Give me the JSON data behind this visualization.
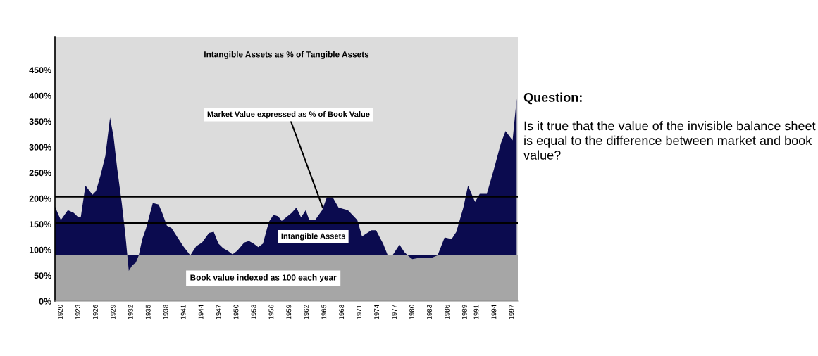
{
  "chart_data": {
    "type": "area",
    "title": "Intangible Assets as % of Tangible Assets",
    "x": [
      1919.0,
      1920.0,
      1921.2,
      1922.2,
      1923.0,
      1923.4,
      1924.2,
      1924.8,
      1925.4,
      1926.0,
      1926.8,
      1927.6,
      1928.4,
      1929.0,
      1929.6,
      1930.4,
      1931.0,
      1931.6,
      1932.2,
      1932.8,
      1933.3,
      1933.9,
      1934.5,
      1935.7,
      1936.7,
      1937.3,
      1938.1,
      1938.9,
      1940.1,
      1940.9,
      1942.1,
      1943.1,
      1944.1,
      1945.3,
      1946.1,
      1946.9,
      1947.7,
      1948.5,
      1949.3,
      1950.1,
      1951.3,
      1952.1,
      1952.9,
      1953.7,
      1954.5,
      1955.5,
      1956.3,
      1957.1,
      1957.7,
      1959.4,
      1960.2,
      1961.0,
      1961.8,
      1962.4,
      1963.4,
      1964.6,
      1965.4,
      1966.4,
      1967.4,
      1969.0,
      1970.6,
      1971.4,
      1973.0,
      1973.8,
      1975.0,
      1975.8,
      1976.6,
      1977.8,
      1978.6,
      1979.4,
      1980.0,
      1981.0,
      1983.4,
      1984.3,
      1985.5,
      1986.7,
      1987.5,
      1988.7,
      1989.5,
      1990.1,
      1990.7,
      1991.5,
      1992.7,
      1993.9,
      1995.1,
      1995.9,
      1997.1,
      1997.8
    ],
    "series": [
      {
        "color": "#0b0b4f",
        "values": [
          184,
          158,
          177,
          172,
          163,
          163,
          225,
          216,
          207,
          214,
          246,
          283,
          357,
          320,
          260,
          191,
          131,
          59,
          70,
          75,
          89,
          121,
          140,
          191,
          188,
          172,
          147,
          142,
          121,
          107,
          89,
          107,
          114,
          133,
          135,
          112,
          103,
          98,
          91,
          98,
          114,
          117,
          112,
          105,
          112,
          154,
          168,
          165,
          156,
          172,
          182,
          163,
          177,
          158,
          158,
          177,
          202,
          202,
          182,
          177,
          158,
          126,
          138,
          138,
          112,
          89,
          89,
          110,
          96,
          87,
          82,
          84,
          85,
          89,
          124,
          121,
          135,
          182,
          225,
          209,
          193,
          209,
          209,
          256,
          307,
          331,
          313,
          394
        ]
      }
    ],
    "xlim": [
      1919,
      1998
    ],
    "xticks": [
      1920,
      1923,
      1926,
      1929,
      1932,
      1935,
      1938,
      1941,
      1944,
      1947,
      1950,
      1953,
      1956,
      1959,
      1962,
      1965,
      1968,
      1971,
      1974,
      1977,
      1980,
      1983,
      1986,
      1989,
      1991,
      1994,
      1997
    ],
    "ylim": [
      0,
      515
    ],
    "yticks": [
      {
        "value": 0,
        "label": "0%"
      },
      {
        "value": 50,
        "label": "50%"
      },
      {
        "value": 100,
        "label": "100%"
      },
      {
        "value": 150,
        "label": "150%"
      },
      {
        "value": 200,
        "label": "200%"
      },
      {
        "value": 250,
        "label": "250%"
      },
      {
        "value": 300,
        "label": "300%"
      },
      {
        "value": 350,
        "label": "350%"
      },
      {
        "value": 400,
        "label": "400%"
      },
      {
        "value": 450,
        "label": "450%"
      }
    ],
    "bands": [
      {
        "axis": "y",
        "from": 0,
        "to": 89,
        "label": "Book value indexed as 100 each year",
        "color": "#a6a6a6"
      }
    ],
    "ref_lines": [
      {
        "axis": "y",
        "value": 203,
        "color": "#000000"
      },
      {
        "axis": "y",
        "value": 152,
        "color": "#000000"
      }
    ],
    "annotations": [
      {
        "text": "Market Value expressed as % of Book Value",
        "x": 1964.7,
        "y": 182
      },
      "Intangible Assets",
      "Question:",
      "Is it true that the value of the invisible balance sheet is equal to the difference between market and book value?"
    ],
    "grid": false
  }
}
